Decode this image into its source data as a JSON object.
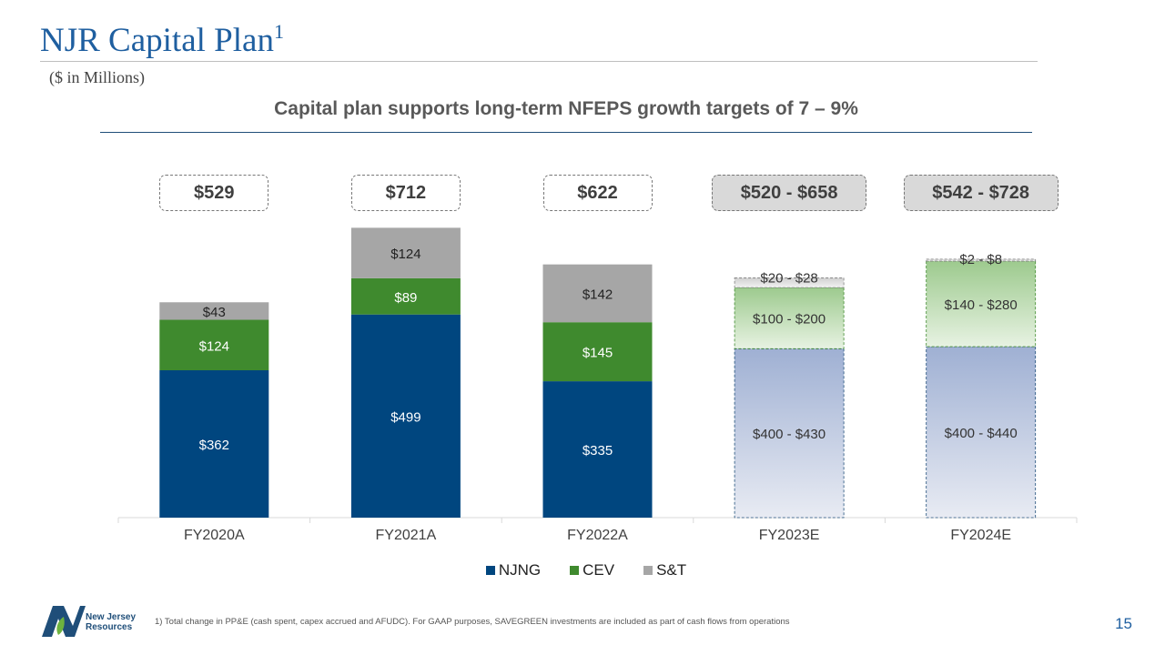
{
  "header": {
    "title": "NJR Capital Plan",
    "title_sup": "1",
    "units": "($ in Millions)",
    "subtitle": "Capital plan supports long-term NFEPS growth targets of 7 – 9%"
  },
  "chart_data": {
    "type": "bar",
    "stacked": true,
    "categories": [
      "FY2020A",
      "FY2021A",
      "FY2022A",
      "FY2023E",
      "FY2024E"
    ],
    "totals": [
      "$529",
      "$712",
      "$622",
      "$520 - $658",
      "$542 - $728"
    ],
    "ylim": [
      0,
      780
    ],
    "series": [
      {
        "name": "NJNG",
        "color": "#00467f",
        "values": [
          362,
          499,
          335,
          [
            400,
            430
          ],
          [
            400,
            440
          ]
        ],
        "labels": [
          "$362",
          "$499",
          "$335",
          "$400 - $430",
          "$400 - $440"
        ]
      },
      {
        "name": "CEV",
        "color": "#3f8a2e",
        "values": [
          124,
          89,
          145,
          [
            100,
            200
          ],
          [
            140,
            280
          ]
        ],
        "labels": [
          "$124",
          "$89",
          "$145",
          "$100 - $200",
          "$140 - $280"
        ]
      },
      {
        "name": "S&T",
        "color": "#a6a6a6",
        "values": [
          43,
          124,
          142,
          [
            20,
            28
          ],
          [
            2,
            8
          ]
        ],
        "labels": [
          "$43",
          "$124",
          "$142",
          "$20 - $28",
          "$2 - $8"
        ]
      }
    ],
    "projected": [
      false,
      false,
      false,
      true,
      true
    ],
    "legend_position": "bottom"
  },
  "footer": {
    "logo_text_line1": "New Jersey",
    "logo_text_line2": "Resources",
    "footnote": "1)    Total change in PP&E   (cash spent, capex accrued and AFUDC).  For GAAP purposes, SAVEGREEN  investments are included as part of cash flows from operations",
    "page_number": "15"
  }
}
